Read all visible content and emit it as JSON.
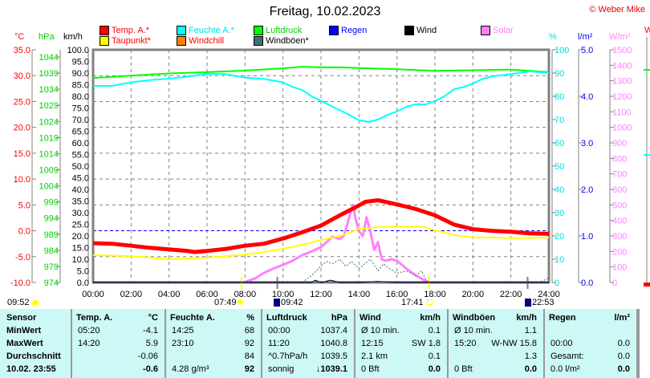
{
  "header": {
    "title": "Freitag, 10.02.2023",
    "copyright": "© Weber Mike"
  },
  "legend": [
    {
      "label": "Temp. A.*",
      "color": "#ff0000",
      "text_color": "#ff0000"
    },
    {
      "label": "Feuchte A.*",
      "color": "#00ffff",
      "text_color": "#00e0e0"
    },
    {
      "label": "Luftdruck",
      "color": "#00ff00",
      "text_color": "#00d000"
    },
    {
      "label": "Regen",
      "color": "#0000ff",
      "text_color": "#0000ff"
    },
    {
      "label": "Wind",
      "color": "#000000",
      "text_color": "#000000"
    },
    {
      "label": "Solar",
      "color": "#ff80ff",
      "text_color": "#ff80ff"
    },
    {
      "label": "Taupunkt*",
      "color": "#ffff00",
      "text_color": "#ff0000"
    },
    {
      "label": "Windchill",
      "color": "#ff8000",
      "text_color": "#ff0000"
    },
    {
      "label": "Windböen*",
      "color": "#407070",
      "text_color": "#000000"
    }
  ],
  "units": {
    "temp": "°C",
    "pressure": "hPa",
    "wind": "km/h",
    "humidity": "%",
    "rain": "l/m²",
    "solar": "W/m²",
    "extra": "W"
  },
  "astro": {
    "left_time": "09:52",
    "sunrise": "07:49",
    "moonrise": "09:42",
    "sunset": "17:41",
    "moonset": "22:53"
  },
  "chart_data": {
    "type": "line",
    "title": "Freitag, 10.02.2023",
    "x_ticks": [
      "00:00",
      "02:00",
      "04:00",
      "06:00",
      "08:00",
      "10:00",
      "12:00",
      "14:00",
      "16:00",
      "18:00",
      "20:00",
      "22:00",
      "24:00"
    ],
    "xlim": [
      0,
      24
    ],
    "axes": {
      "temp": {
        "range": [
          -10,
          35
        ],
        "ticks": [
          "35.0",
          "30.0",
          "25.0",
          "20.0",
          "15.0",
          "10.0",
          "5.0",
          "0.0",
          "-5.0",
          "-10.0"
        ]
      },
      "pressure": {
        "range": [
          974,
          1044
        ],
        "ticks": [
          "1044",
          "1039",
          "1034",
          "1029",
          "1024",
          "1019",
          "1014",
          "1009",
          "1004",
          "999",
          "994",
          "989",
          "984",
          "979",
          "974"
        ]
      },
      "wind": {
        "range": [
          0,
          100
        ],
        "ticks": [
          "100.0",
          "95.0",
          "90.0",
          "85.0",
          "80.0",
          "75.0",
          "70.0",
          "65.0",
          "60.0",
          "55.0",
          "50.0",
          "45.0",
          "40.0",
          "35.0",
          "30.0",
          "25.0",
          "20.0",
          "15.0",
          "10.0",
          "5.0",
          "0.0"
        ]
      },
      "humidity": {
        "range": [
          0,
          100
        ],
        "ticks": [
          "100",
          "90",
          "80",
          "70",
          "60",
          "50",
          "40",
          "30",
          "20",
          "10",
          "0"
        ]
      },
      "rain": {
        "range": [
          0,
          5
        ],
        "ticks": [
          "5.0",
          "4.0",
          "3.0",
          "2.0",
          "1.0",
          "0.0"
        ]
      },
      "solar": {
        "range": [
          0,
          1500
        ],
        "ticks": [
          "1500",
          "1400",
          "1300",
          "1200",
          "1100",
          "1000",
          "900",
          "800",
          "700",
          "600",
          "500",
          "400",
          "300",
          "200",
          "100",
          "0"
        ]
      }
    },
    "series": [
      {
        "name": "Temp. A.",
        "axis": "temp",
        "color": "#ff0000",
        "x": [
          0,
          1,
          2,
          3,
          4,
          5,
          5.33,
          6,
          7,
          8,
          9,
          10,
          11,
          12,
          13,
          14,
          14.33,
          15,
          16,
          17,
          18,
          19,
          20,
          21,
          22,
          23,
          24
        ],
        "y": [
          -2.4,
          -2.5,
          -2.9,
          -3.3,
          -3.6,
          -3.9,
          -4.1,
          -3.9,
          -3.5,
          -2.9,
          -2.5,
          -1.5,
          -0.3,
          1.0,
          3.0,
          4.9,
          5.6,
          5.9,
          5.1,
          4.2,
          3.0,
          1.2,
          0.3,
          0.0,
          -0.2,
          -0.5,
          -0.6
        ]
      },
      {
        "name": "Taupunkt",
        "axis": "temp",
        "color": "#ffff00",
        "x": [
          0,
          2,
          4,
          6,
          8,
          9,
          10,
          11,
          12,
          13,
          13.5,
          14,
          15,
          16,
          17,
          17.5,
          18,
          19,
          20,
          21,
          22,
          23,
          24
        ],
        "y": [
          -4.7,
          -4.9,
          -5.5,
          -5.2,
          -4.6,
          -4.1,
          -3.5,
          -2.7,
          -1.8,
          -1.0,
          -0.4,
          0.4,
          0.7,
          0.8,
          0.8,
          0.7,
          0.1,
          -0.8,
          -1.3,
          -1.3,
          -1.4,
          -1.4,
          -1.3
        ]
      },
      {
        "name": "Feuchte A.",
        "axis": "humidity",
        "color": "#00ffff",
        "x": [
          0,
          1,
          2,
          3,
          4,
          5,
          6,
          7,
          8,
          9,
          10,
          10.5,
          11,
          11.5,
          12,
          12.5,
          13,
          13.5,
          14,
          14.5,
          15,
          15.5,
          16,
          16.5,
          17,
          17.5,
          18,
          18.5,
          19,
          19.5,
          20,
          20.5,
          21,
          22,
          23,
          24
        ],
        "y": [
          84.5,
          84.5,
          86,
          87,
          87.6,
          88.5,
          89.7,
          89.5,
          88,
          87.5,
          86,
          84,
          82.8,
          80,
          78,
          76,
          74,
          72,
          69.7,
          69,
          70,
          72,
          73.5,
          75.5,
          76.6,
          76.5,
          78,
          80,
          83,
          84,
          85.5,
          87.5,
          88.6,
          89.5,
          90.7,
          90
        ]
      },
      {
        "name": "Luftdruck",
        "axis": "pressure",
        "color": "#00ff00",
        "x": [
          0,
          2,
          4,
          6,
          8,
          10,
          11,
          12,
          13,
          14,
          16,
          18,
          20,
          22,
          24
        ],
        "y": [
          1037.5,
          1038.2,
          1038.9,
          1039.3,
          1039.8,
          1040.5,
          1041,
          1040.8,
          1040.8,
          1040.6,
          1040.2,
          1039.7,
          1039.9,
          1040.1,
          1039.3
        ]
      },
      {
        "name": "Solar",
        "axis": "solar",
        "color": "#ff80ff",
        "x": [
          7.9,
          8.5,
          9,
          9.5,
          10,
          10.5,
          11,
          11.5,
          12,
          12.3,
          12.6,
          13,
          13.2,
          13.4,
          13.6,
          13.7,
          13.8,
          14,
          14.2,
          14.4,
          14.6,
          14.8,
          15,
          15.2,
          15.4,
          15.7,
          16,
          16.5,
          17,
          17.3,
          17.5,
          17.7
        ],
        "y": [
          0,
          25,
          62,
          90,
          114,
          140,
          176,
          200,
          228,
          260,
          295,
          280,
          300,
          380,
          470,
          500,
          420,
          330,
          300,
          420,
          330,
          210,
          260,
          150,
          140,
          150,
          140,
          90,
          45,
          25,
          10,
          0
        ]
      },
      {
        "name": "Windböen",
        "axis": "wind",
        "color": "#407070",
        "x": [
          11,
          11.5,
          12,
          12.3,
          12.6,
          13,
          13.3,
          13.6,
          14,
          14.3,
          14.6,
          15,
          15.3,
          15.6,
          16,
          16.5,
          17,
          17.3,
          17.6,
          23.5,
          24
        ],
        "y": [
          0,
          3,
          7,
          9,
          8,
          10,
          7,
          9,
          6,
          8,
          10,
          5,
          8,
          6,
          4,
          5,
          3,
          5,
          0,
          0,
          2
        ]
      },
      {
        "name": "Wind",
        "axis": "wind",
        "color": "#000000",
        "x": [
          0,
          11.5,
          11.7,
          12,
          12.5,
          13,
          14,
          15,
          16,
          17,
          24
        ],
        "y": [
          0,
          0,
          1,
          0,
          1,
          0,
          0,
          0.5,
          0,
          0,
          0
        ]
      }
    ]
  },
  "table": {
    "row_labels": [
      "Sensor",
      "MinWert",
      "MaxWert",
      "Durchschnitt",
      "10.02. 23:55"
    ],
    "columns": [
      {
        "name": "Temp. A.",
        "unit": "°C",
        "rows": [
          [
            "05:20",
            "-4.1"
          ],
          [
            "14:20",
            "5.9"
          ],
          [
            "",
            "-0.06"
          ],
          [
            "",
            "-0.6"
          ]
        ]
      },
      {
        "name": "Feuchte A.",
        "unit": "%",
        "rows": [
          [
            "14:25",
            "68"
          ],
          [
            "23:10",
            "92"
          ],
          [
            "",
            "84"
          ],
          [
            "4.28 g/m³",
            "92"
          ]
        ]
      },
      {
        "name": "Luftdruck",
        "unit": "hPa",
        "rows": [
          [
            "00:00",
            "1037.4"
          ],
          [
            "11:20",
            "1040.8"
          ],
          [
            "^0.7hPa/h",
            "1039.5"
          ],
          [
            "sonnig",
            "↓1039.1"
          ]
        ]
      },
      {
        "name": "Wind",
        "unit": "km/h",
        "rows": [
          [
            "Ø 10 min.",
            "0.1"
          ],
          [
            "12:15",
            "SW 1.8"
          ],
          [
            "2.1 km",
            "0.1"
          ],
          [
            "0 Bft",
            "0.0"
          ]
        ]
      },
      {
        "name": "Windböen",
        "unit": "km/h",
        "rows": [
          [
            "Ø 10 min.",
            "1.1"
          ],
          [
            "15:20",
            "W-NW 15.8"
          ],
          [
            "",
            "1.3"
          ],
          [
            "0 Bft",
            "0.0"
          ]
        ]
      },
      {
        "name": "Regen",
        "unit": "l/m²",
        "rows": [
          [
            "",
            ""
          ],
          [
            "00:00",
            "0.0"
          ],
          [
            "Gesamt:",
            "0.0"
          ],
          [
            "0.0 l/m²",
            "0.0"
          ]
        ]
      }
    ]
  }
}
